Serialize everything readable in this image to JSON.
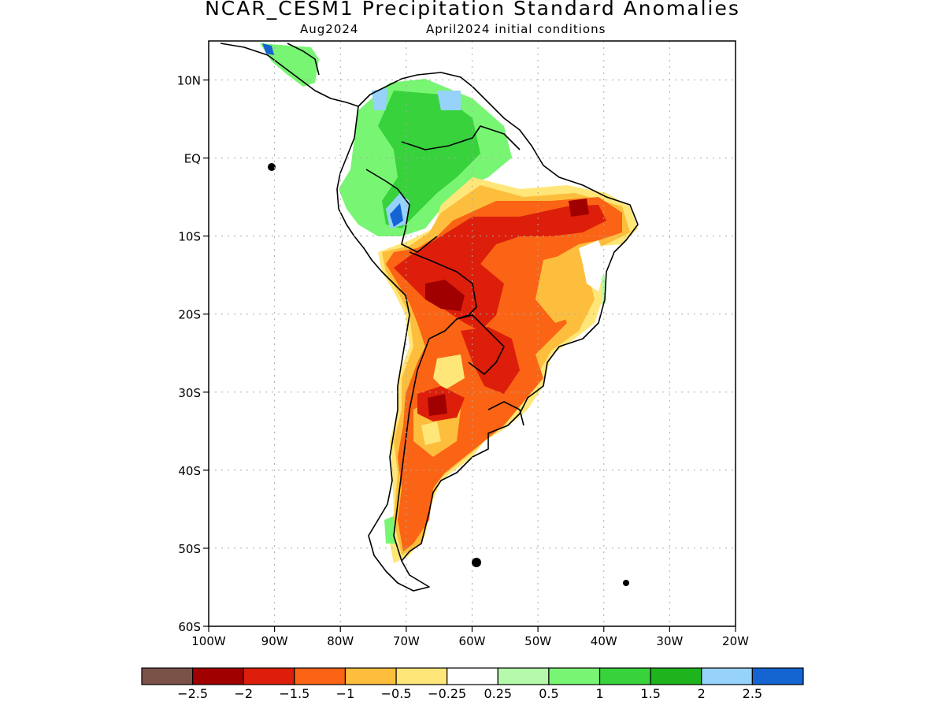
{
  "title": "NCAR_CESM1 Precipitation Standard Anomalies",
  "subtitle_left": "Aug2024",
  "subtitle_right": "April2024 initial conditions",
  "map": {
    "lon_range": [
      -100,
      -20
    ],
    "lat_range": [
      -60,
      15
    ],
    "grid_lines": "dotted",
    "lat_ticks": [
      {
        "lat": 10,
        "label": "10N"
      },
      {
        "lat": 0,
        "label": "EQ"
      },
      {
        "lat": -10,
        "label": "10S"
      },
      {
        "lat": -20,
        "label": "20S"
      },
      {
        "lat": -30,
        "label": "30S"
      },
      {
        "lat": -40,
        "label": "40S"
      },
      {
        "lat": -50,
        "label": "50S"
      },
      {
        "lat": -60,
        "label": "60S"
      }
    ],
    "lon_ticks": [
      {
        "lon": -100,
        "label": "100W"
      },
      {
        "lon": -90,
        "label": "90W"
      },
      {
        "lon": -80,
        "label": "80W"
      },
      {
        "lon": -70,
        "label": "70W"
      },
      {
        "lon": -60,
        "label": "60W"
      },
      {
        "lon": -50,
        "label": "50W"
      },
      {
        "lon": -40,
        "label": "40W"
      },
      {
        "lon": -30,
        "label": "30W"
      },
      {
        "lon": -20,
        "label": "20W"
      }
    ]
  },
  "colorbar": {
    "colors": [
      "#7a5248",
      "#a00000",
      "#dc1e0a",
      "#fa6414",
      "#fcbe3c",
      "#ffe678",
      "#ffffff",
      "#b4faaa",
      "#78f573",
      "#37d23c",
      "#1eb41e",
      "#96d2fa",
      "#1464d2"
    ],
    "labels": [
      "-2.5",
      "-2",
      "-1.5",
      "-1",
      "-0.5",
      "-0.25",
      "0.25",
      "0.5",
      "1",
      "1.5",
      "2",
      "2.5"
    ]
  },
  "colors": {
    "land_outline": "#000000",
    "grid": "#aaaaaa"
  }
}
